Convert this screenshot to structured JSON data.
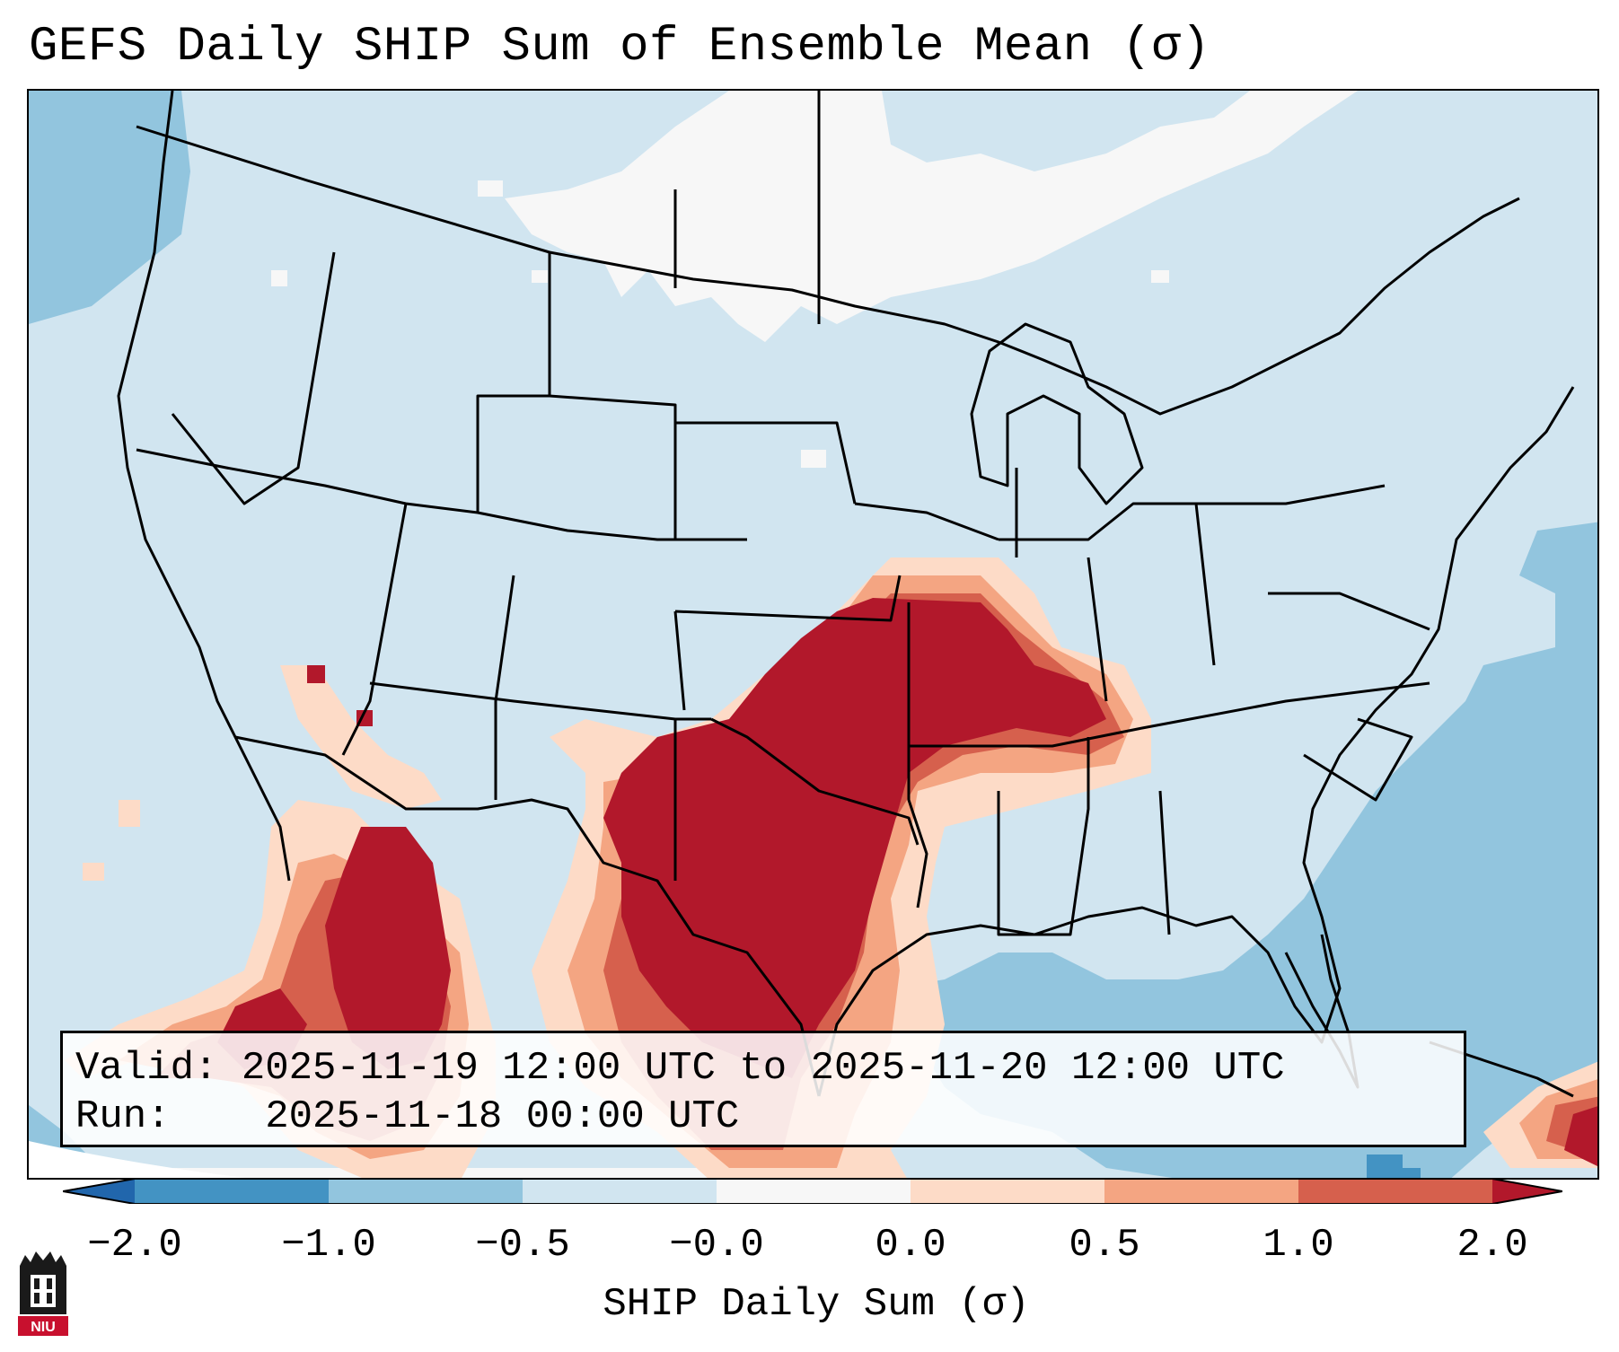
{
  "title": "GEFS Daily SHIP Sum of Ensemble Mean (σ)",
  "info": {
    "valid_label": "Valid:",
    "valid_value": "2025-11-19 12:00 UTC to 2025-11-20 12:00 UTC",
    "run_label": "Run:",
    "run_value": "2025-11-18 00:00 UTC"
  },
  "colorbar": {
    "label": "SHIP Daily Sum (σ)",
    "tick_labels": [
      "−2.0",
      "−1.0",
      "−0.5",
      "−0.0",
      "0.0",
      "0.5",
      "1.0",
      "2.0"
    ],
    "bin_colors": [
      "#4393c3",
      "#92c5de",
      "#d1e5f0",
      "#f7f7f7",
      "#fddbc7",
      "#f4a582",
      "#d6604d",
      "#b2182b"
    ],
    "under_color": "#2166ac",
    "over_color": "#67001f"
  },
  "logo": {
    "text": "NIU",
    "icon": "university-tower-icon"
  }
}
